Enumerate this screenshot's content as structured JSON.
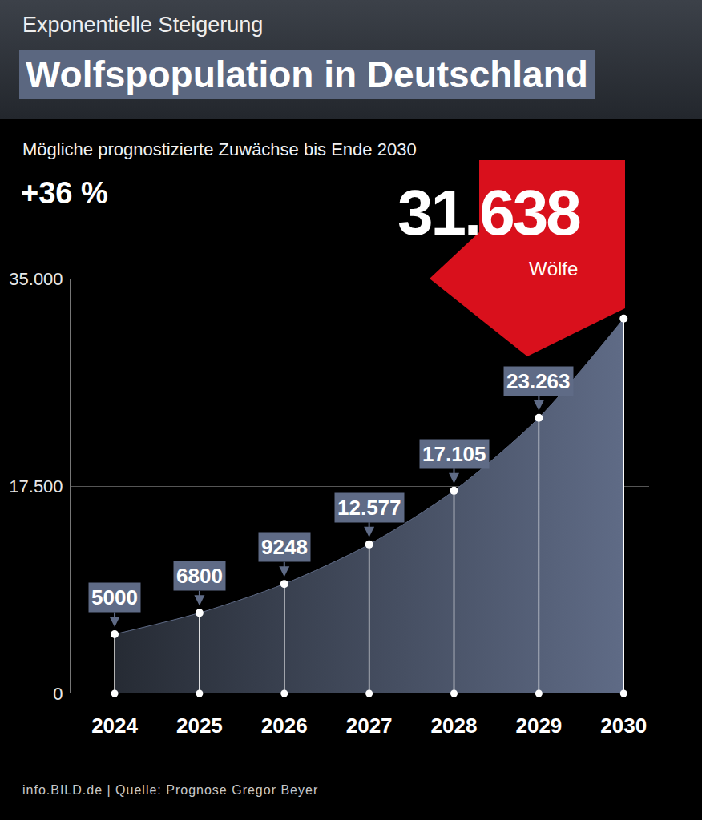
{
  "chart_data": {
    "type": "area",
    "kicker": "Exponentielle Steigerung",
    "title": "Wolfspopulation in Deutschland",
    "subtitle": "Mögliche prognostizierte Zuwächse bis Ende 2030",
    "growth_label": "+36 %",
    "highlight_unit": "Wölfe",
    "source": "info.BILD.de | Quelle: Prognose Gregor Beyer",
    "categories": [
      "2024",
      "2025",
      "2026",
      "2027",
      "2028",
      "2029",
      "2030"
    ],
    "values": [
      5000,
      6800,
      9248,
      12577,
      17105,
      23263,
      31638
    ],
    "value_labels": [
      "5000",
      "6800",
      "9248",
      "12.577",
      "17.105",
      "23.263",
      "31.638"
    ],
    "data_labels": true,
    "color": "#5f6b86",
    "ylim": [
      0,
      35000
    ],
    "yticks": [
      0,
      {
        "value": 17500,
        "label": "17.500"
      },
      {
        "value": 35000,
        "label": "35.000"
      }
    ],
    "grid": true
  }
}
